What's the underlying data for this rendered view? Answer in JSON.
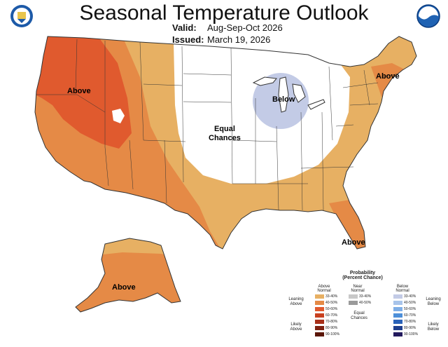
{
  "title": "Seasonal Temperature Outlook",
  "valid_label": "Valid:",
  "valid_value": "Aug-Sep-Oct 2026",
  "issued_label": "Issued:",
  "issued_value": "March 19, 2026",
  "map_labels": {
    "above_northwest": "Above",
    "below_greatlakes": "Below",
    "equal_chances": "Equal\nChances",
    "above_northeast": "Above",
    "above_florida": "Above",
    "above_alaska": "Above"
  },
  "logos": {
    "left": "doc-seal-icon",
    "right": "noaa-logo-icon"
  },
  "colors": {
    "above_33_40": "#e7b063",
    "above_40_50": "#e58a46",
    "above_50_60": "#e05a2e",
    "below_33_40": "#c3cbe6",
    "land": "#ffffff",
    "ocean": "#ffffff",
    "border": "#333333"
  },
  "legend": {
    "title": "Probability",
    "subtitle": "(Percent Chance)",
    "above_header": "Above\nNormal",
    "near_header": "Near\nNormal",
    "below_header": "Below\nNormal",
    "leaning_above": "Leaning\nAbove",
    "likely_above": "Likely\nAbove",
    "leaning_below": "Leaning\nBelow",
    "likely_below": "Likely\nBelow",
    "equal_chances": "Equal\nChances",
    "above_rows": [
      "33-40%",
      "40-50%",
      "50-60%",
      "60-70%",
      "70-80%",
      "80-90%",
      "90-100%"
    ],
    "near_rows": [
      "33-40%",
      "40-50%"
    ],
    "below_rows": [
      "33-40%",
      "40-50%",
      "50-60%",
      "60-70%",
      "70-80%",
      "80-90%",
      "90-100%"
    ],
    "above_colors": [
      "#e7b063",
      "#e58a46",
      "#e05a2e",
      "#c8401f",
      "#a8301a",
      "#7f2212",
      "#5a1608"
    ],
    "near_colors": [
      "#c8c8c8",
      "#9a9a9a"
    ],
    "below_colors": [
      "#c3cbe6",
      "#a8c4ea",
      "#7eaee6",
      "#4d8fd9",
      "#2a62b8",
      "#1f3f8e",
      "#231a5e"
    ]
  }
}
